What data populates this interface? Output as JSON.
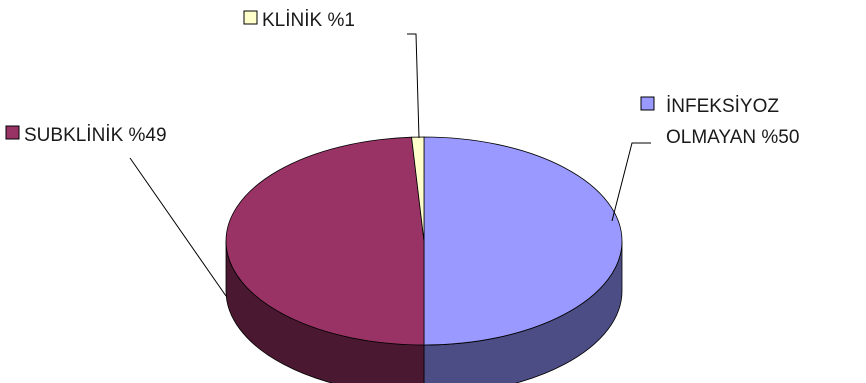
{
  "chart_data": {
    "type": "pie",
    "style": "3d",
    "title": "",
    "legend": "none",
    "slices": [
      {
        "name": "İNFEKSİYOZ OLMAYAN",
        "value": 50,
        "label_lines": [
          "İNFEKSİYOZ",
          "OLMAYAN %50"
        ],
        "color": "#9999ff",
        "side_color": "#4d4d85"
      },
      {
        "name": "SUBKLİNİK",
        "value": 49,
        "label_lines": [
          "SUBKLİNİK %49"
        ],
        "color": "#993366",
        "side_color": "#4a1830"
      },
      {
        "name": "KLİNİK",
        "value": 1,
        "label_lines": [
          "KLİNİK %1"
        ],
        "color": "#ffffcc",
        "side_color": "#a3a37a"
      }
    ]
  }
}
